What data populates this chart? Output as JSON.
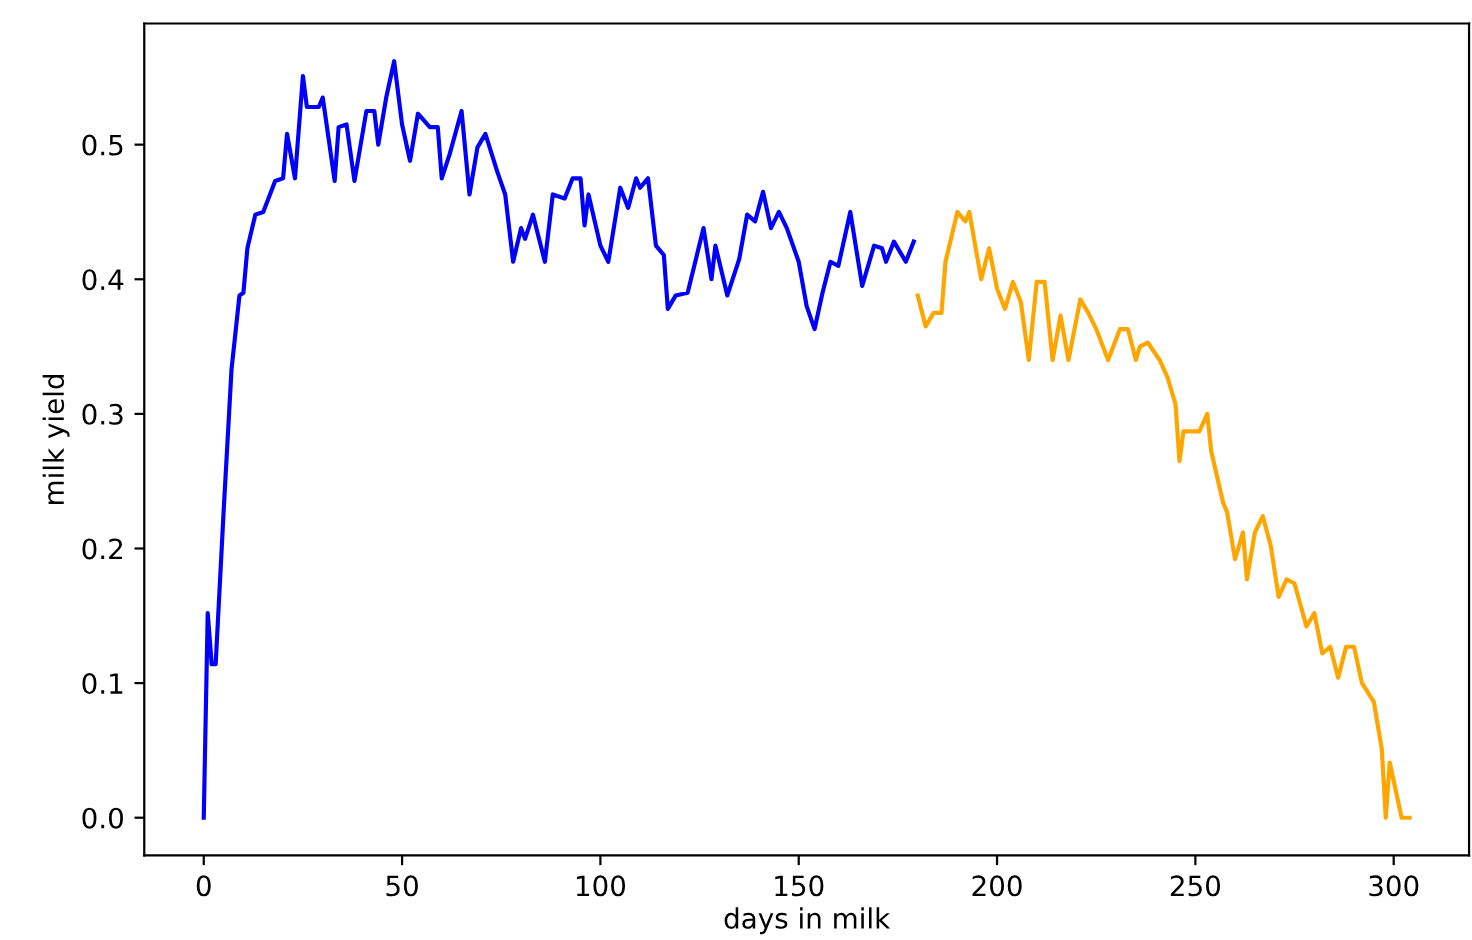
{
  "chart_data": {
    "type": "line",
    "xlabel": "days in milk",
    "ylabel": "milk yield",
    "xlim": [
      -15,
      319
    ],
    "ylim": [
      -0.028,
      0.59
    ],
    "xticks": [
      0,
      50,
      100,
      150,
      200,
      250,
      300
    ],
    "yticks": [
      {
        "value": 0,
        "label": "0.0"
      },
      {
        "value": 0.1,
        "label": "0.1"
      },
      {
        "value": 0.2,
        "label": "0.2"
      },
      {
        "value": 0.3,
        "label": "0.3"
      },
      {
        "value": 0.4,
        "label": "0.4"
      },
      {
        "value": 0.5,
        "label": "0.5"
      }
    ],
    "grid": false,
    "legend": false,
    "series": [
      {
        "color": "#0000ff",
        "x": [
          0,
          1,
          2,
          3,
          5,
          7,
          9,
          10,
          11,
          13,
          15,
          18,
          20,
          21,
          23,
          25,
          26,
          29,
          30,
          33,
          34,
          36,
          38,
          41,
          43,
          44,
          46,
          48,
          50,
          52,
          54,
          57,
          59,
          60,
          62,
          65,
          67,
          69,
          71,
          74,
          76,
          78,
          80,
          81,
          83,
          86,
          88,
          91,
          93,
          95,
          96,
          97,
          100,
          102,
          105,
          107,
          109,
          110,
          112,
          114,
          116,
          117,
          119,
          122,
          126,
          128,
          129,
          132,
          135,
          137,
          139,
          141,
          143,
          145,
          147,
          150,
          152,
          154,
          156,
          158,
          160,
          163,
          166,
          169,
          171,
          172,
          174,
          177,
          179
        ],
        "values": [
          0.0,
          0.152,
          0.114,
          0.114,
          0.227,
          0.333,
          0.388,
          0.39,
          0.423,
          0.448,
          0.45,
          0.473,
          0.475,
          0.508,
          0.475,
          0.551,
          0.528,
          0.528,
          0.535,
          0.473,
          0.513,
          0.515,
          0.473,
          0.525,
          0.525,
          0.5,
          0.535,
          0.562,
          0.515,
          0.488,
          0.523,
          0.513,
          0.513,
          0.475,
          0.493,
          0.525,
          0.463,
          0.498,
          0.508,
          0.48,
          0.463,
          0.413,
          0.438,
          0.43,
          0.448,
          0.413,
          0.463,
          0.46,
          0.475,
          0.475,
          0.44,
          0.463,
          0.425,
          0.413,
          0.468,
          0.453,
          0.475,
          0.468,
          0.475,
          0.425,
          0.418,
          0.378,
          0.388,
          0.39,
          0.438,
          0.4,
          0.425,
          0.388,
          0.415,
          0.448,
          0.443,
          0.465,
          0.438,
          0.45,
          0.438,
          0.413,
          0.38,
          0.363,
          0.39,
          0.413,
          0.41,
          0.45,
          0.395,
          0.425,
          0.423,
          0.413,
          0.428,
          0.413,
          0.428
        ]
      },
      {
        "color": "#ffa500",
        "x": [
          180,
          182,
          184,
          186,
          187,
          190,
          192,
          193,
          196,
          198,
          200,
          202,
          204,
          206,
          208,
          210,
          212,
          214,
          216,
          218,
          221,
          223,
          225,
          228,
          231,
          233,
          235,
          236,
          238,
          241,
          243,
          245,
          246,
          247,
          251,
          253,
          254,
          257,
          258,
          260,
          262,
          263,
          265,
          267,
          269,
          271,
          273,
          275,
          278,
          280,
          282,
          284,
          286,
          288,
          290,
          292,
          295,
          297,
          298,
          299,
          302,
          304
        ],
        "values": [
          0.388,
          0.365,
          0.375,
          0.375,
          0.413,
          0.45,
          0.443,
          0.45,
          0.4,
          0.423,
          0.393,
          0.378,
          0.398,
          0.383,
          0.34,
          0.398,
          0.398,
          0.34,
          0.373,
          0.34,
          0.385,
          0.375,
          0.363,
          0.34,
          0.363,
          0.363,
          0.34,
          0.35,
          0.353,
          0.34,
          0.327,
          0.307,
          0.265,
          0.287,
          0.287,
          0.3,
          0.272,
          0.234,
          0.227,
          0.192,
          0.212,
          0.177,
          0.212,
          0.224,
          0.202,
          0.164,
          0.177,
          0.174,
          0.142,
          0.152,
          0.122,
          0.127,
          0.104,
          0.127,
          0.127,
          0.1,
          0.086,
          0.051,
          0.0,
          0.041,
          0.0,
          0.0
        ]
      }
    ]
  }
}
